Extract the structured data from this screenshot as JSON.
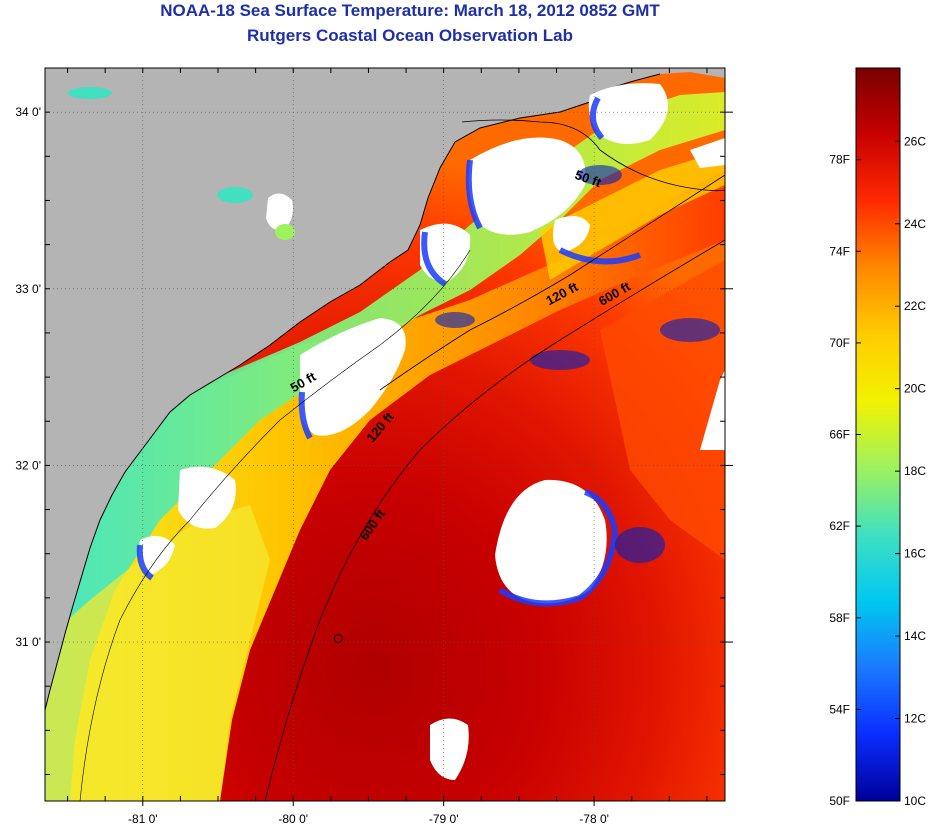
{
  "header": {
    "title": "NOAA-18 Sea Surface Temperature:  March 18, 2012 0852 GMT",
    "subtitle": "Rutgers Coastal Ocean Observation Lab"
  },
  "map": {
    "lon_range": [
      -81.65,
      -77.13
    ],
    "lat_range": [
      30.1,
      34.25
    ],
    "lon_ticks": [
      {
        "value": -81,
        "label": "-81 0'"
      },
      {
        "value": -80,
        "label": "-80 0'"
      },
      {
        "value": -79,
        "label": "-79 0'"
      },
      {
        "value": -78,
        "label": "-78 0'"
      }
    ],
    "lat_ticks": [
      {
        "value": 34,
        "label": "34 0'"
      },
      {
        "value": 33,
        "label": "33 0'"
      },
      {
        "value": 32,
        "label": "32 0'"
      },
      {
        "value": 31,
        "label": "31 0'"
      }
    ],
    "contour_labels": [
      {
        "text": "50 ft",
        "lon": -78.05,
        "lat": 33.6,
        "angle": 20
      },
      {
        "text": "120 ft",
        "lon": -78.2,
        "lat": 32.95,
        "angle": -28
      },
      {
        "text": "600 ft",
        "lon": -77.85,
        "lat": 32.95,
        "angle": -30
      },
      {
        "text": "50 ft",
        "lon": -79.92,
        "lat": 32.45,
        "angle": -30
      },
      {
        "text": "120 ft",
        "lon": -79.4,
        "lat": 32.2,
        "angle": -50
      },
      {
        "text": "600 ft",
        "lon": -79.45,
        "lat": 31.65,
        "angle": -55
      }
    ],
    "marker": {
      "lon": -79.7,
      "lat": 31.02
    },
    "land_color": "#b4b4b4",
    "cloud_color": "#ffffff"
  },
  "colorbar": {
    "top_value_f": 82,
    "bottom_value_f": 50,
    "fahrenheit_labels": [
      "78F",
      "74F",
      "70F",
      "66F",
      "62F",
      "58F",
      "54F",
      "50F"
    ],
    "celsius_labels": [
      "26C",
      "24C",
      "22C",
      "20C",
      "18C",
      "16C",
      "14C",
      "12C",
      "10C"
    ],
    "colors": [
      "#7a0000",
      "#c80000",
      "#ff2a00",
      "#ff8800",
      "#ffcc00",
      "#f2f200",
      "#9ef25e",
      "#40e0c0",
      "#00c8f0",
      "#1a7aff",
      "#0a2dff",
      "#00009a"
    ]
  }
}
